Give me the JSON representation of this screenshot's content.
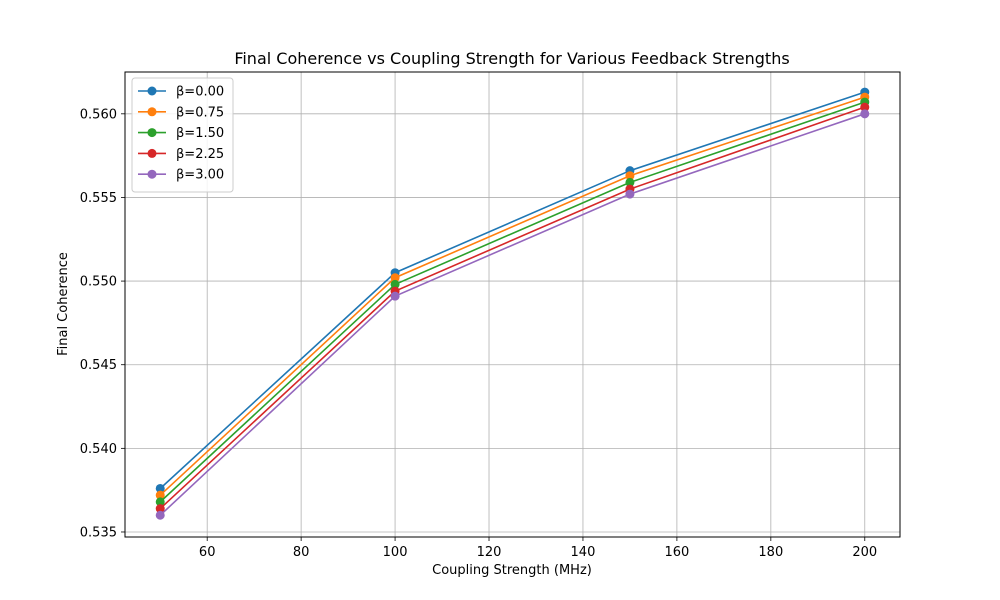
{
  "chart_data": {
    "type": "line",
    "title": "Final Coherence vs Coupling Strength for Various Feedback Strengths",
    "xlabel": "Coupling Strength (MHz)",
    "ylabel": "Final Coherence",
    "xlim": [
      42.5,
      207.5
    ],
    "ylim": [
      0.5347,
      0.5625
    ],
    "xticks": [
      60,
      80,
      100,
      120,
      140,
      160,
      180,
      200
    ],
    "yticks": [
      0.535,
      0.54,
      0.545,
      0.55,
      0.555,
      0.56
    ],
    "ytick_labels": [
      "0.535",
      "0.540",
      "0.545",
      "0.550",
      "0.555",
      "0.560"
    ],
    "grid": true,
    "legend_position": "top-left",
    "x": [
      50,
      100,
      150,
      200
    ],
    "series": [
      {
        "name": "β=0.00",
        "color": "#1f77b4",
        "values": [
          0.5376,
          0.5505,
          0.5566,
          0.5613
        ]
      },
      {
        "name": "β=0.75",
        "color": "#ff7f0e",
        "values": [
          0.5372,
          0.5502,
          0.5563,
          0.561
        ]
      },
      {
        "name": "β=1.50",
        "color": "#2ca02c",
        "values": [
          0.5368,
          0.5498,
          0.5559,
          0.5607
        ]
      },
      {
        "name": "β=2.25",
        "color": "#d62728",
        "values": [
          0.5364,
          0.5494,
          0.5555,
          0.5604
        ]
      },
      {
        "name": "β=3.00",
        "color": "#9467bd",
        "values": [
          0.536,
          0.5491,
          0.5552,
          0.56
        ]
      }
    ]
  }
}
